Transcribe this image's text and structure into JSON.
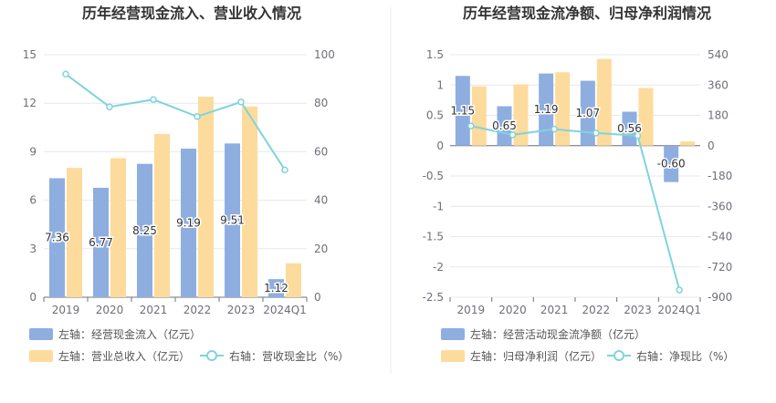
{
  "colors": {
    "bar_blue": "#8eaee0",
    "bar_orange": "#fddb9c",
    "line_cyan": "#7fd4dc",
    "grid": "#e6e8ef",
    "axis_text": "#6e7079"
  },
  "chart_data": [
    {
      "type": "bar",
      "title": "历年经营现金流入、营业收入情况",
      "categories": [
        "2019",
        "2020",
        "2021",
        "2022",
        "2023",
        "2024Q1"
      ],
      "left_axis": {
        "ylim": [
          0,
          15
        ],
        "ticks": [
          "0",
          "3",
          "6",
          "9",
          "12",
          "15"
        ]
      },
      "right_axis": {
        "ylim": [
          0,
          100
        ],
        "ticks": [
          "0",
          "20",
          "40",
          "60",
          "80",
          "100"
        ]
      },
      "series": [
        {
          "name": "左轴：经营现金流入（亿元）",
          "axis": "left",
          "kind": "bar",
          "values": [
            7.36,
            6.77,
            8.25,
            9.19,
            9.51,
            1.12
          ],
          "labels": [
            "7.36",
            "6.77",
            "8.25",
            "9.19",
            "9.51",
            "1.12"
          ]
        },
        {
          "name": "左轴：营业总收入（亿元）",
          "axis": "left",
          "kind": "bar",
          "values": [
            8.0,
            8.6,
            10.1,
            12.4,
            11.8,
            2.1
          ]
        },
        {
          "name": "右轴：营收现金比（%）",
          "axis": "right",
          "kind": "line",
          "values": [
            92,
            78.5,
            81.5,
            74.5,
            80.5,
            52.5
          ]
        }
      ]
    },
    {
      "type": "bar",
      "title": "历年经营现金流净额、归母净利润情况",
      "categories": [
        "2019",
        "2020",
        "2021",
        "2022",
        "2023",
        "2024Q1"
      ],
      "left_axis": {
        "ylim": [
          -2.5,
          1.5
        ],
        "ticks": [
          "-2.5",
          "-2",
          "-1.5",
          "-1",
          "-0.5",
          "0",
          "0.5",
          "1",
          "1.5"
        ]
      },
      "right_axis": {
        "ylim": [
          -900,
          540
        ],
        "ticks": [
          "-900",
          "-720",
          "-540",
          "-360",
          "-180",
          "0",
          "180",
          "360",
          "540"
        ]
      },
      "series": [
        {
          "name": "左轴：经营活动现金流净额（亿元）",
          "axis": "left",
          "kind": "bar",
          "values": [
            1.15,
            0.65,
            1.19,
            1.07,
            0.56,
            -0.6
          ],
          "labels": [
            "1.15",
            "0.65",
            "1.19",
            "1.07",
            "0.56",
            "-0.60"
          ]
        },
        {
          "name": "左轴：归母净利润（亿元）",
          "axis": "left",
          "kind": "bar",
          "values": [
            0.98,
            1.01,
            1.21,
            1.43,
            0.95,
            0.07
          ]
        },
        {
          "name": "右轴：净现比（%）",
          "axis": "right",
          "kind": "line",
          "values": [
            117,
            64,
            98,
            75,
            59,
            -857
          ]
        }
      ]
    }
  ]
}
